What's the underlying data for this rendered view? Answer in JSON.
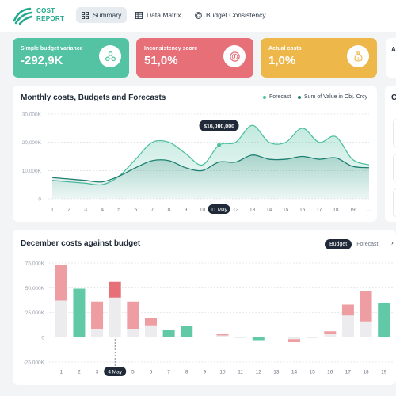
{
  "header": {
    "logo_line1": "COST",
    "logo_line2": "REPORT",
    "tabs": [
      {
        "label": "Summary",
        "icon": "grid-icon",
        "active": true
      },
      {
        "label": "Data Matrix",
        "icon": "table-icon",
        "active": false
      },
      {
        "label": "Budget Consistency",
        "icon": "target-icon",
        "active": false
      }
    ]
  },
  "kpis": [
    {
      "label": "Simple budget variance",
      "value": "-292,9K",
      "color": "#53c3a4",
      "icon": "nodes-icon"
    },
    {
      "label": "Inconsistency score",
      "value": "51,0%",
      "color": "#e66f78",
      "icon": "coin-icon"
    },
    {
      "label": "Actual costs",
      "value": "1,0%",
      "color": "#eeb74a",
      "icon": "money-bag-icon"
    }
  ],
  "kpi_partial_label": "A",
  "right_panel_stub_title": "C",
  "monthly_chart": {
    "title": "Monthly costs, Budgets and Forecasts",
    "legend": [
      {
        "label": "Forecast",
        "color": "#4fc1a1"
      },
      {
        "label": "Sum of Value in Obj. Crcy",
        "color": "#1e7f72"
      }
    ],
    "tooltip": "$16,000,000",
    "highlight_label": "11 May",
    "ellipsis": "..."
  },
  "december_chart": {
    "title": "December costs against budget",
    "toggle": [
      "Budget",
      "Forecast"
    ],
    "highlight_label": "4 May",
    "right_arrow": "›"
  },
  "colors": {
    "teal": "#53c3a4",
    "dark_teal": "#1e7f72",
    "red": "#e66f78",
    "yellow": "#eeb74a"
  },
  "chart_data": [
    {
      "type": "area",
      "title": "Monthly costs, Budgets and Forecasts",
      "ylim": [
        0,
        30000
      ],
      "yticks": [
        "0",
        "10,000K",
        "20,000K",
        "30,000K"
      ],
      "categories": [
        "1",
        "2",
        "3",
        "4",
        "5",
        "6",
        "7",
        "8",
        "9",
        "10",
        "11 May",
        "12",
        "13",
        "14",
        "15",
        "16",
        "17",
        "18",
        "19",
        ""
      ],
      "series": [
        {
          "name": "Forecast",
          "values": [
            6500,
            6000,
            5500,
            5000,
            8000,
            14000,
            20000,
            20000,
            16000,
            12000,
            19000,
            20000,
            26000,
            20000,
            20000,
            25000,
            20000,
            22000,
            14000,
            12000
          ]
        },
        {
          "name": "Sum of Value in Obj. Crcy",
          "values": [
            7500,
            7000,
            6500,
            6000,
            8000,
            11000,
            13500,
            13500,
            11000,
            10000,
            13000,
            13000,
            15500,
            14000,
            14000,
            15000,
            14000,
            14500,
            11500,
            11000
          ]
        }
      ]
    },
    {
      "type": "bar",
      "title": "December costs against budget",
      "ylim": [
        -25000,
        75000
      ],
      "yticks": [
        "-25,000K",
        "0",
        "25,000K",
        "50,000K",
        "75,000K"
      ],
      "categories": [
        "1",
        "2",
        "3",
        "4 May",
        "5",
        "6",
        "7",
        "8",
        "9",
        "10",
        "11",
        "12",
        "13",
        "14",
        "15",
        "16",
        "17",
        "18",
        "19"
      ],
      "series": [
        {
          "name": "Budget",
          "values": [
            37000,
            0,
            8000,
            40000,
            8000,
            12000,
            0,
            0,
            0,
            2000,
            -1000,
            0,
            0,
            -2000,
            -1000,
            3000,
            22000,
            16000,
            0
          ]
        },
        {
          "name": "Over",
          "values": [
            36000,
            0,
            28000,
            16000,
            28000,
            7000,
            0,
            0,
            0,
            1000,
            0,
            0,
            0,
            -3000,
            0,
            3000,
            11000,
            31000,
            0
          ]
        },
        {
          "name": "Under",
          "values": [
            0,
            49000,
            0,
            0,
            0,
            0,
            7000,
            11000,
            0,
            0,
            0,
            -3000,
            0,
            0,
            0,
            0,
            0,
            0,
            35000
          ]
        }
      ]
    }
  ]
}
